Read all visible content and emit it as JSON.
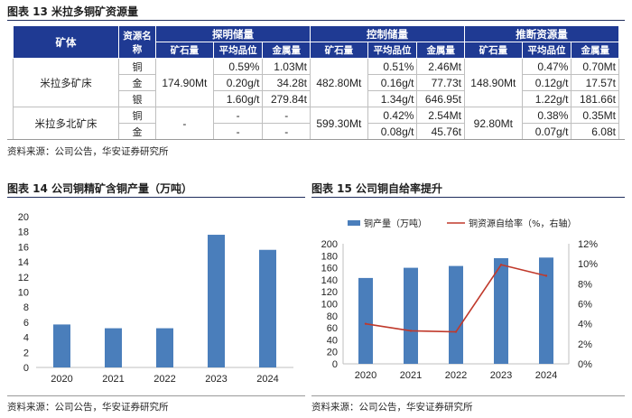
{
  "table": {
    "title": "图表 13  米拉多铜矿资源量",
    "header": {
      "mine": "矿体",
      "resource_name": "资源名称",
      "groups": [
        "探明储量",
        "控制储量",
        "推断资源量"
      ],
      "subcols": [
        "矿石量",
        "平均品位",
        "金属量"
      ]
    },
    "rows": [
      {
        "mine": "米拉多矿床",
        "element": "铜",
        "ore1": "174.90Mt",
        "grade1": "0.59%",
        "metal1": "1.03Mt",
        "ore2": "482.80Mt",
        "grade2": "0.51%",
        "metal2": "2.46Mt",
        "ore3": "148.90Mt",
        "grade3": "0.47%",
        "metal3": "0.70Mt"
      },
      {
        "element": "金",
        "grade1": "0.20g/t",
        "metal1": "34.28t",
        "grade2": "0.16g/t",
        "metal2": "77.73t",
        "grade3": "0.12g/t",
        "metal3": "17.57t"
      },
      {
        "element": "银",
        "grade1": "1.60g/t",
        "metal1": "279.84t",
        "grade2": "1.34g/t",
        "metal2": "646.95t",
        "grade3": "1.22g/t",
        "metal3": "181.66t"
      },
      {
        "mine": "米拉多北矿床",
        "element": "铜",
        "ore1": "-",
        "grade1": "-",
        "metal1": "-",
        "ore2": "599.30Mt",
        "grade2": "0.42%",
        "metal2": "2.54Mt",
        "ore3": "92.80Mt",
        "grade3": "0.38%",
        "metal3": "0.35Mt"
      },
      {
        "element": "金",
        "grade1": "-",
        "metal1": "-",
        "grade2": "0.08g/t",
        "metal2": "45.76t",
        "grade3": "0.07g/t",
        "metal3": "6.08t"
      }
    ],
    "source": "资料来源：公司公告，华安证券研究所"
  },
  "chart14": {
    "title": "图表 14  公司铜精矿含铜产量（万吨）",
    "source": "资料来源：公司公告，华安证券研究所"
  },
  "chart15": {
    "title": "图表 15  公司铜自给率提升",
    "source": "资料来源：公司公告，华安证券研究所"
  },
  "chart_data": [
    {
      "type": "bar",
      "title": "公司铜精矿含铜产量（万吨）",
      "categories": [
        "2020",
        "2021",
        "2022",
        "2023",
        "2024"
      ],
      "values": [
        5.7,
        5.2,
        5.2,
        17.6,
        15.6
      ],
      "ylim": [
        0,
        20
      ],
      "yticks": [
        "0",
        "2",
        "4",
        "6",
        "8",
        "10",
        "12",
        "14",
        "16",
        "18",
        "20"
      ],
      "color": "#4a7ebb"
    },
    {
      "type": "bar+line",
      "title": "公司铜自给率提升",
      "categories": [
        "2020",
        "2021",
        "2022",
        "2023",
        "2024"
      ],
      "series": [
        {
          "name": "铜产量（万吨）",
          "kind": "bar",
          "axis": "left",
          "values": [
            143,
            160,
            163,
            176,
            177
          ],
          "color": "#4a7ebb"
        },
        {
          "name": "铜资源自给率（%，右轴）",
          "kind": "line",
          "axis": "right",
          "values": [
            4.0,
            3.3,
            3.2,
            9.9,
            8.8
          ],
          "color": "#c0392b"
        }
      ],
      "ylim_left": [
        0,
        200
      ],
      "ylim_right": [
        0,
        12
      ],
      "yticks_left": [
        "0",
        "20",
        "40",
        "60",
        "80",
        "100",
        "120",
        "140",
        "160",
        "180",
        "200"
      ],
      "yticks_right": [
        "0%",
        "2%",
        "4%",
        "6%",
        "8%",
        "10%",
        "12%"
      ]
    }
  ]
}
